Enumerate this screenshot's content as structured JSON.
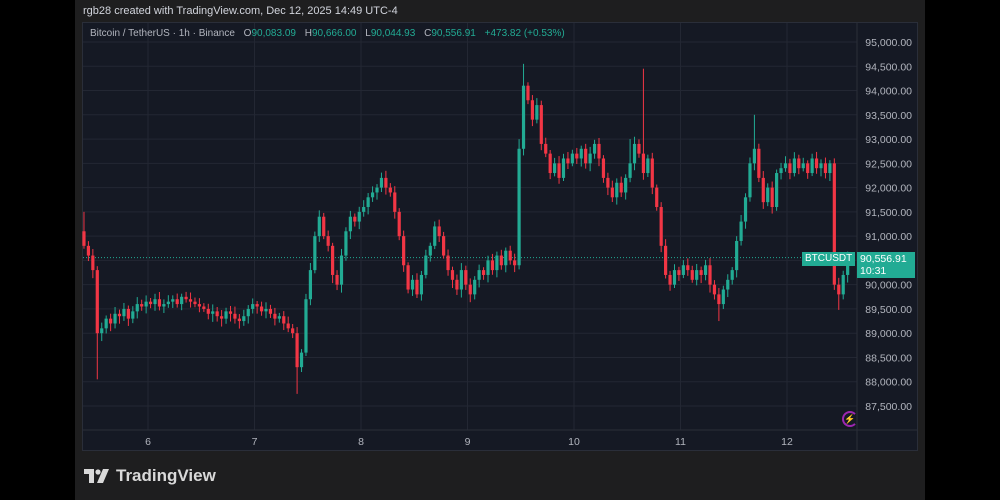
{
  "caption": "rgb28 created with TradingView.com, Dec 12, 2025 14:49 UTC-4",
  "legend": {
    "symbol": "Bitcoin / TetherUS · 1h · Binance",
    "open_label": "O",
    "open": "90,083.09",
    "high_label": "H",
    "high": "90,666.00",
    "low_label": "L",
    "low": "90,044.93",
    "close_label": "C",
    "close": "90,556.91",
    "change": "+473.82 (+0.53%)"
  },
  "last_price": {
    "ticker": "BTCUSDT",
    "price": "90,556.91",
    "countdown": "10:31",
    "value": 90556.91
  },
  "logo_text": "TradingView",
  "colors": {
    "up": "#22ab94",
    "down": "#f23645",
    "bg": "#151924",
    "grid": "#232733",
    "accent_icon": "#9c27b0"
  },
  "chart_data": {
    "type": "candlestick",
    "interval": "1h",
    "yaxis_ticks": [
      "87,500.00",
      "88,000.00",
      "88,500.00",
      "89,000.00",
      "89,500.00",
      "90,000.00",
      "90,500.00",
      "91,000.00",
      "91,500.00",
      "92,000.00",
      "92,500.00",
      "93,000.00",
      "93,500.00",
      "94,000.00",
      "94,500.00",
      "95,000.00"
    ],
    "yaxis_tick_values": [
      87500,
      88000,
      88500,
      89000,
      89500,
      90000,
      90500,
      91000,
      91500,
      92000,
      92500,
      93000,
      93500,
      94000,
      94500,
      95000
    ],
    "ylim": [
      86800,
      95500
    ],
    "xaxis_ticks": [
      "6",
      "7",
      "8",
      "9",
      "10",
      "11",
      "12"
    ],
    "x_start_day": 5.38,
    "first_open": 91100,
    "closes": [
      90800,
      90600,
      90300,
      89000,
      89100,
      89300,
      89200,
      89400,
      89350,
      89500,
      89300,
      89450,
      89600,
      89550,
      89650,
      89600,
      89700,
      89550,
      89600,
      89650,
      89700,
      89600,
      89750,
      89700,
      89650,
      89600,
      89550,
      89500,
      89400,
      89450,
      89350,
      89300,
      89450,
      89400,
      89300,
      89250,
      89350,
      89500,
      89600,
      89550,
      89450,
      89500,
      89400,
      89300,
      89350,
      89200,
      89100,
      89000,
      88300,
      88600,
      89700,
      90300,
      91000,
      91400,
      91000,
      90800,
      90200,
      90000,
      90600,
      91100,
      91400,
      91300,
      91500,
      91600,
      91800,
      91900,
      92000,
      92200,
      92000,
      91900,
      91500,
      91000,
      90400,
      89900,
      90100,
      89800,
      90200,
      90600,
      90800,
      91200,
      91000,
      90600,
      90300,
      90100,
      89900,
      90300,
      90000,
      89800,
      90100,
      90300,
      90200,
      90500,
      90300,
      90600,
      90400,
      90700,
      90500,
      90400,
      92800,
      94100,
      93800,
      93400,
      93700,
      92900,
      92700,
      92300,
      92500,
      92200,
      92600,
      92500,
      92700,
      92600,
      92800,
      92500,
      92700,
      92900,
      92600,
      92200,
      92000,
      91800,
      92100,
      91900,
      92200,
      92500,
      92900,
      92700,
      92300,
      92600,
      92000,
      91600,
      90800,
      90200,
      90000,
      90300,
      90200,
      90400,
      90300,
      90100,
      90300,
      90200,
      90400,
      90000,
      89800,
      89600,
      89900,
      90100,
      90300,
      90900,
      91300,
      91800,
      92500,
      92800,
      92200,
      91700,
      92000,
      91600,
      92300,
      92400,
      92500,
      92300,
      92600,
      92400,
      92500,
      92300,
      92600,
      92400,
      92500,
      92300,
      92500,
      90000,
      89800,
      90200,
      90556.91
    ],
    "high_overrides": {
      "0": 91500,
      "98": 93000,
      "99": 94550,
      "126": 94450,
      "151": 93500,
      "123": 93000
    },
    "low_overrides": {
      "3": 88050,
      "47": 88900,
      "48": 87750,
      "49": 88200,
      "170": 89480,
      "143": 89250
    }
  }
}
